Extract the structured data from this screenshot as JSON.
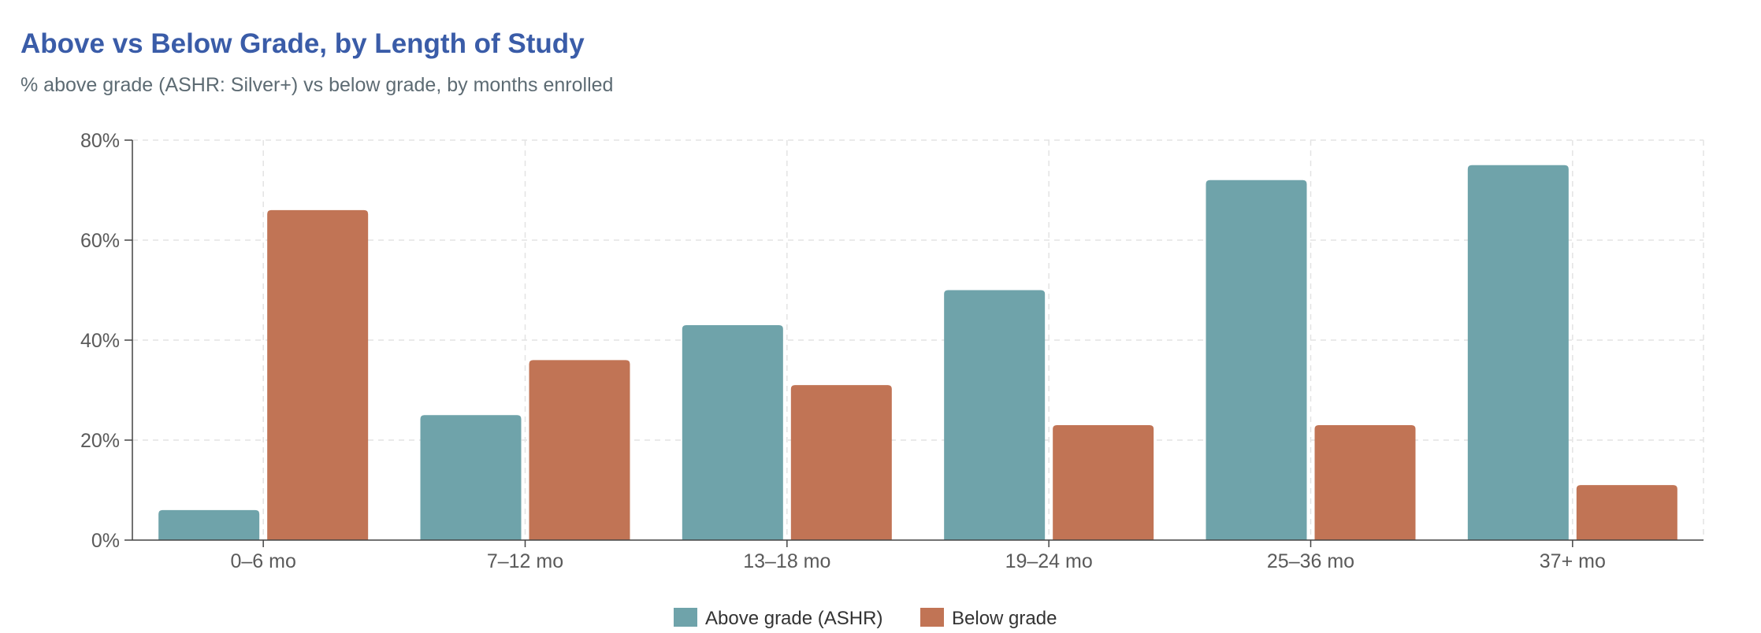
{
  "chart_data": {
    "type": "bar",
    "title": "Above vs Below Grade, by Length of Study",
    "subtitle": "% above grade (ASHR: Silver+) vs below grade, by months enrolled",
    "xlabel": "",
    "ylabel": "",
    "categories": [
      "0–6 mo",
      "7–12 mo",
      "13–18 mo",
      "19–24 mo",
      "25–36 mo",
      "37+ mo"
    ],
    "series": [
      {
        "name": "Above grade (ASHR)",
        "color": "#6fa3aa",
        "values": [
          6,
          25,
          43,
          50,
          72,
          75
        ]
      },
      {
        "name": "Below grade",
        "color": "#c17455",
        "values": [
          66,
          36,
          31,
          23,
          23,
          11
        ]
      }
    ],
    "ylim": [
      0,
      80
    ],
    "yticks": [
      0,
      20,
      40,
      60,
      80
    ],
    "ytick_format": "{v}%",
    "grid": true,
    "legend_position": "bottom-center"
  }
}
